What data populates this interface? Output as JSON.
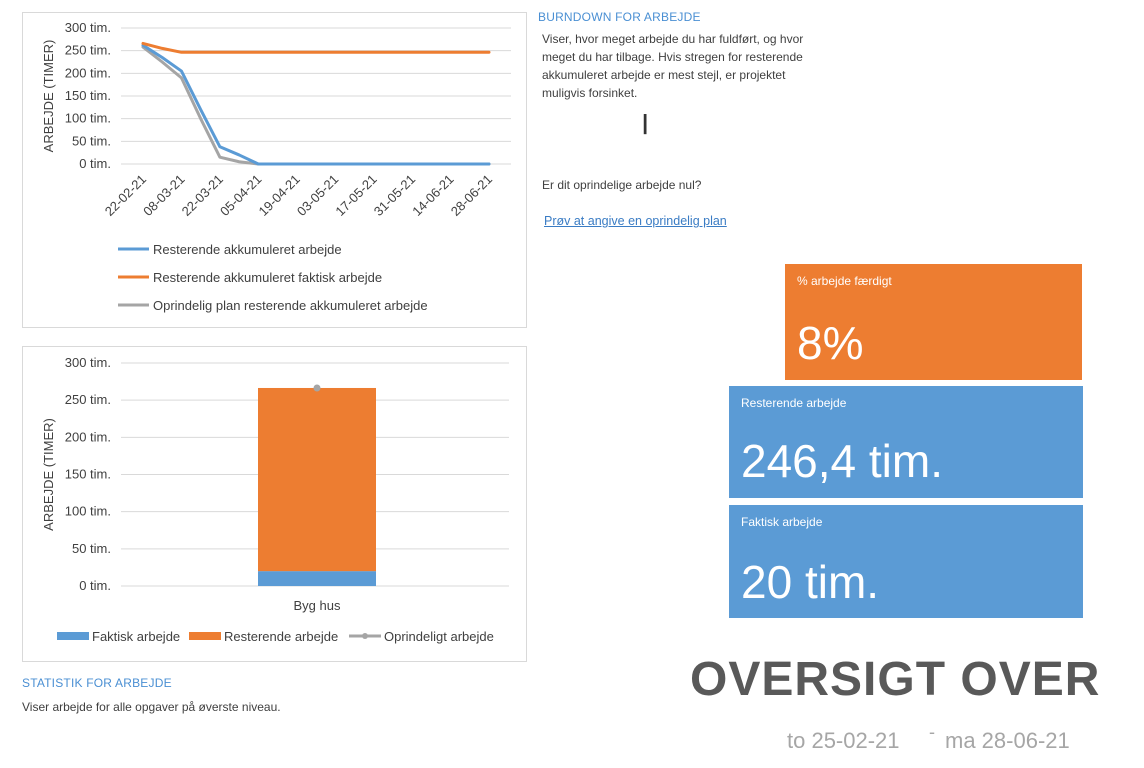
{
  "burndown": {
    "title": "BURNDOWN FOR ARBEJDE",
    "description": "Viser, hvor meget arbejde du har fuldført, og hvor meget du har tilbage. Hvis stregen for resterende akkumuleret arbejde er mest stejl, er projektet muligvis forsinket.",
    "zero_question": "Er dit oprindelige arbejde nul?",
    "plan_link": "Prøv at angive en oprindelig plan"
  },
  "statistics": {
    "title": "STATISTIK FOR ARBEJDE",
    "description": "Viser  arbejde for alle opgaver på øverste niveau."
  },
  "tiles": {
    "percent_complete": {
      "label": "% arbejde færdigt",
      "value": "8%"
    },
    "remaining_work": {
      "label": "Resterende arbejde",
      "value": "246,4 tim."
    },
    "actual_work": {
      "label": "Faktisk arbejde",
      "value": "20 tim."
    }
  },
  "heading": "OVERSIGT OVER",
  "date_from": "to 25-02-21",
  "date_separator": "-",
  "date_to": "ma 28-06-21",
  "chart_data": [
    {
      "type": "line",
      "ylabel": "ARBEJDE (TIMER)",
      "xlabel": "",
      "ylim": [
        0,
        300
      ],
      "y_ticks": [
        0,
        50,
        100,
        150,
        200,
        250,
        300
      ],
      "y_tick_labels": [
        "0 tim.",
        "50 tim.",
        "100 tim.",
        "150 tim.",
        "200 tim.",
        "250 tim.",
        "300 tim."
      ],
      "x_tick_labels": [
        "22-02-21",
        "08-03-21",
        "22-03-21",
        "05-04-21",
        "19-04-21",
        "03-05-21",
        "17-05-21",
        "31-05-21",
        "14-06-21",
        "28-06-21"
      ],
      "x_points": [
        "22-02-21",
        "01-03-21",
        "08-03-21",
        "15-03-21",
        "22-03-21",
        "29-03-21",
        "05-04-21",
        "12-04-21",
        "19-04-21",
        "26-04-21",
        "03-05-21",
        "10-05-21",
        "17-05-21",
        "24-05-21",
        "31-05-21",
        "07-06-21",
        "14-06-21",
        "21-06-21",
        "28-06-21"
      ],
      "legend": "bottom",
      "grid": true,
      "series": [
        {
          "name": "Resterende akkumuleret arbejde",
          "color": "#5b9bd5",
          "values": [
            262,
            235,
            205,
            120,
            38,
            20,
            0,
            0,
            0,
            0,
            0,
            0,
            0,
            0,
            0,
            0,
            0,
            0,
            0
          ]
        },
        {
          "name": "Resterende akkumuleret faktisk arbejde",
          "color": "#ed7d31",
          "values": [
            266,
            255,
            246.4,
            246.4,
            246.4,
            246.4,
            246.4,
            246.4,
            246.4,
            246.4,
            246.4,
            246.4,
            246.4,
            246.4,
            246.4,
            246.4,
            246.4,
            246.4,
            246.4
          ]
        },
        {
          "name": "Oprindelig plan resterende akkumuleret arbejde",
          "color": "#a5a5a5",
          "values": [
            258,
            225,
            190,
            100,
            15,
            5,
            0,
            0,
            0,
            0,
            0,
            0,
            0,
            0,
            0,
            0,
            0,
            0,
            0
          ]
        }
      ]
    },
    {
      "type": "bar",
      "stacked": true,
      "ylabel": "ARBEJDE (TIMER)",
      "xlabel": "",
      "ylim": [
        0,
        300
      ],
      "y_ticks": [
        0,
        50,
        100,
        150,
        200,
        250,
        300
      ],
      "y_tick_labels": [
        "0 tim.",
        "50 tim.",
        "100 tim.",
        "150 tim.",
        "200 tim.",
        "250 tim.",
        "300 tim."
      ],
      "categories": [
        "Byg hus"
      ],
      "legend": "bottom",
      "grid": true,
      "series": [
        {
          "name": "Faktisk arbejde",
          "color": "#5b9bd5",
          "values": [
            20
          ]
        },
        {
          "name": "Resterende arbejde",
          "color": "#ed7d31",
          "values": [
            246.4
          ]
        },
        {
          "name": "Oprindeligt arbejde",
          "color": "#a5a5a5",
          "kind": "marker",
          "values": [
            266.4
          ]
        }
      ]
    }
  ]
}
